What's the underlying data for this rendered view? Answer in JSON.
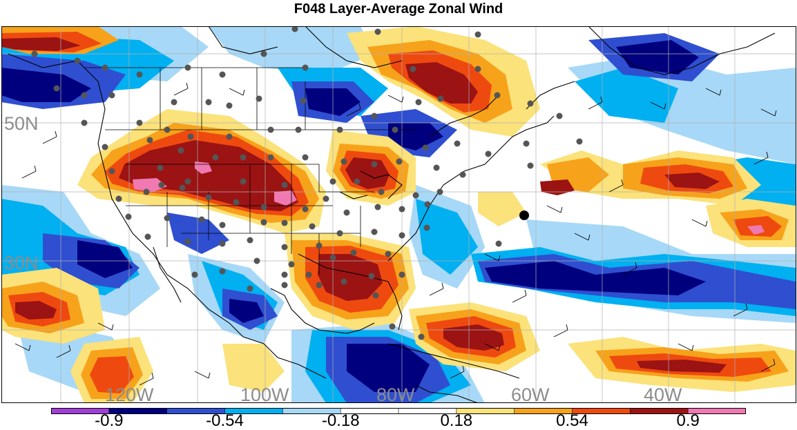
{
  "title": "F048 Layer-Average Zonal Wind",
  "map": {
    "lat_labels": [
      "50N",
      "30N"
    ],
    "lon_labels": [
      "120W",
      "100W",
      "80W",
      "60W",
      "40W"
    ],
    "label_color": "#8c8c8c"
  },
  "colorbar": {
    "colors": [
      "#9f3fd6",
      "#00007f",
      "#2f4fd0",
      "#00b0f0",
      "#a7d8f7",
      "#ffffff",
      "#ffffff",
      "#fbe27a",
      "#f7a21b",
      "#ee4a10",
      "#9b1313",
      "#f079b1"
    ],
    "tick_labels": [
      "-0.9",
      "-0.54",
      "-0.18",
      "0.18",
      "0.54",
      "0.9"
    ]
  }
}
